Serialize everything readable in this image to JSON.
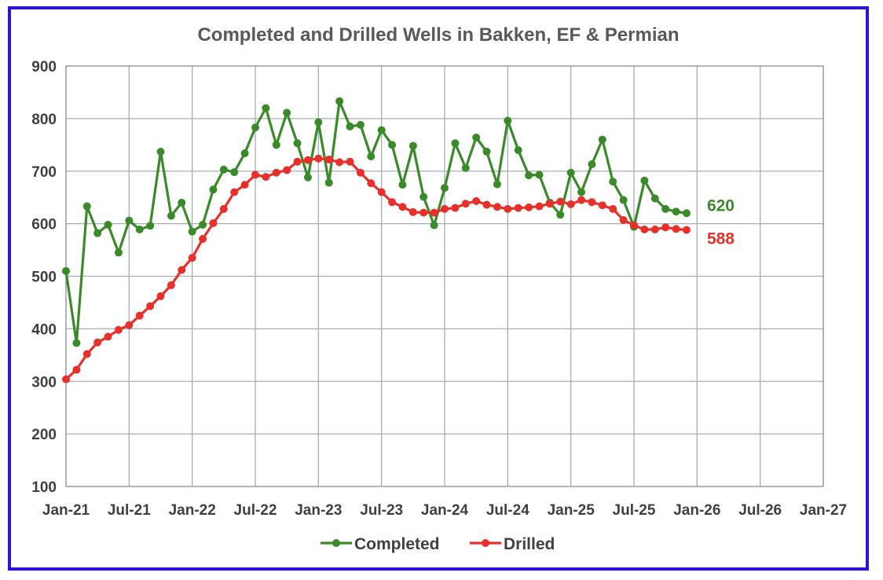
{
  "colors": {
    "frame": "#2a14d8",
    "grid": "#a6aeb8",
    "completed": "#3a8a2a",
    "drilled": "#e8302a",
    "text": "#404040",
    "title": "#595959"
  },
  "chart_data": {
    "type": "line",
    "title": "Completed and Drilled Wells in Bakken, EF & Permian",
    "xlabel": "",
    "ylabel": "",
    "ylim": [
      100,
      900
    ],
    "yticks": [
      100,
      200,
      300,
      400,
      500,
      600,
      700,
      800,
      900
    ],
    "xlim": [
      "Jan-21",
      "Jan-27"
    ],
    "xtick_labels": [
      "Jan-21",
      "Jul-21",
      "Jan-22",
      "Jul-22",
      "Jan-23",
      "Jul-23",
      "Jan-24",
      "Jul-24",
      "Jan-25",
      "Jul-25",
      "Jan-26",
      "Jul-26",
      "Jan-27"
    ],
    "grid": true,
    "legend_position": "bottom",
    "x_start": "Jan-21",
    "x_interval": "monthly",
    "series": [
      {
        "name": "Completed",
        "color": "#3a8a2a",
        "end_label": "620",
        "values": [
          510,
          373,
          633,
          582,
          598,
          545,
          606,
          589,
          596,
          737,
          615,
          640,
          585,
          598,
          665,
          703,
          698,
          734,
          783,
          820,
          750,
          811,
          753,
          688,
          793,
          678,
          833,
          785,
          788,
          728,
          778,
          750,
          674,
          748,
          651,
          597,
          668,
          753,
          706,
          764,
          737,
          675,
          796,
          740,
          692,
          693,
          640,
          617,
          697,
          660,
          713,
          760,
          680,
          645,
          594,
          682,
          648,
          628,
          623,
          620
        ]
      },
      {
        "name": "Drilled",
        "color": "#e8302a",
        "end_label": "588",
        "values": [
          304,
          322,
          352,
          374,
          385,
          398,
          407,
          425,
          443,
          462,
          483,
          512,
          535,
          571,
          601,
          628,
          660,
          674,
          693,
          689,
          697,
          702,
          718,
          721,
          724,
          722,
          717,
          718,
          697,
          677,
          660,
          641,
          632,
          622,
          621,
          621,
          628,
          630,
          638,
          643,
          636,
          632,
          628,
          630,
          631,
          633,
          638,
          642,
          637,
          645,
          641,
          635,
          628,
          607,
          597,
          589,
          589,
          593,
          590,
          588
        ]
      }
    ]
  }
}
